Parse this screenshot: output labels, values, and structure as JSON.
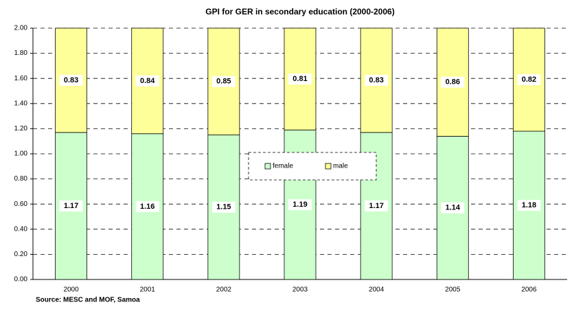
{
  "chart_data": {
    "type": "stacked_bar",
    "title": "GPI for GER in secondary education (2000-2006)",
    "source": "Source: MESC and MOF, Samoa",
    "categories": [
      "2000",
      "2001",
      "2002",
      "2003",
      "2004",
      "2005",
      "2006"
    ],
    "series": [
      {
        "name": "female",
        "color": "#ccffcc",
        "values": [
          1.17,
          1.16,
          1.15,
          1.19,
          1.17,
          1.14,
          1.18
        ]
      },
      {
        "name": "male",
        "color": "#ffff99",
        "values": [
          0.83,
          0.84,
          0.85,
          0.81,
          0.83,
          0.86,
          0.82
        ]
      }
    ],
    "ylim": [
      0,
      2
    ],
    "yticks": [
      {
        "value": 0,
        "label": "0.00"
      },
      {
        "value": 0.2,
        "label": "0.20"
      },
      {
        "value": 0.4,
        "label": "0.40"
      },
      {
        "value": 0.6,
        "label": "0.60"
      },
      {
        "value": 0.8,
        "label": "0.80"
      },
      {
        "value": 1,
        "label": "1.00"
      },
      {
        "value": 1.2,
        "label": "1.20"
      },
      {
        "value": 1.4,
        "label": "1.40"
      },
      {
        "value": 1.6,
        "label": "1.60"
      },
      {
        "value": 1.8,
        "label": "1.80"
      },
      {
        "value": 2,
        "label": "2.00"
      }
    ],
    "grid": true,
    "legend": "center"
  }
}
